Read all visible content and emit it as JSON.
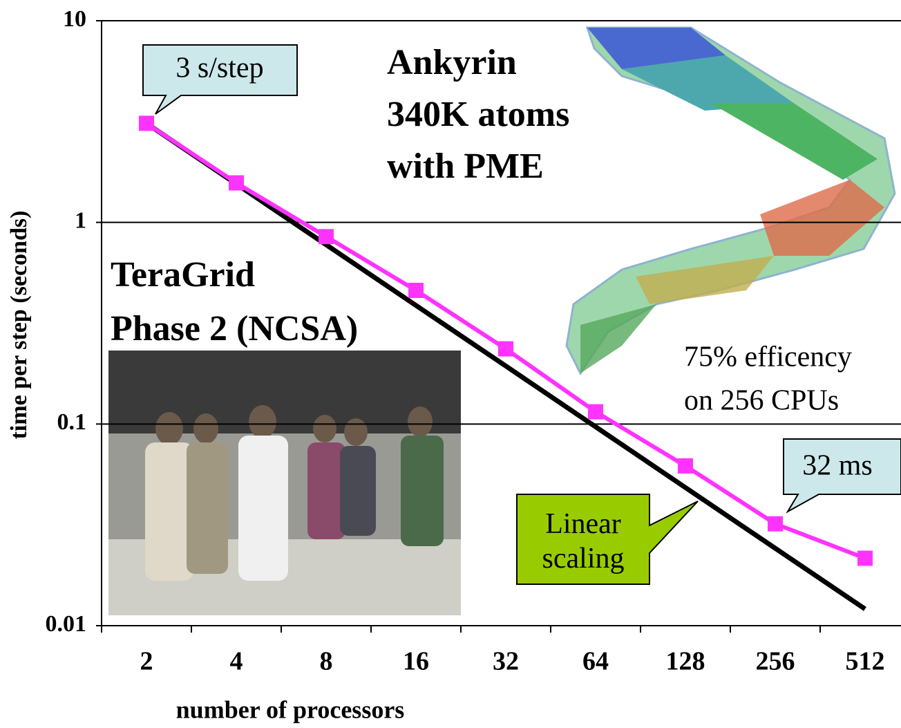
{
  "chart_data": {
    "type": "line",
    "y_label": "time per step (seconds)",
    "x_label": "number of processors",
    "categories": [
      "2",
      "4",
      "8",
      "16",
      "32",
      "64",
      "128",
      "256",
      "512"
    ],
    "series": [
      {
        "name": "Linear scaling",
        "color": "#000000",
        "values": [
          3.1,
          1.55,
          0.775,
          0.3875,
          0.194,
          0.0969,
          0.0484,
          0.0242,
          0.0121
        ]
      },
      {
        "color": "#ff33ff",
        "marker": "square",
        "values": [
          3.1,
          1.57,
          0.85,
          0.46,
          0.236,
          0.115,
          0.062,
          0.032,
          0.0216
        ]
      }
    ],
    "ylim": [
      0.01,
      10
    ],
    "yticks": [
      0.01,
      0.1,
      1,
      10
    ],
    "log_y": true,
    "grid": true,
    "title_lines": [
      "Ankyrin",
      "340K atoms",
      "with PME"
    ],
    "subtitle_lines": [
      "TeraGrid",
      "Phase 2 (NCSA)"
    ],
    "annotations": {
      "start": "3 s/step",
      "end": "32 ms",
      "efficiency": [
        "75% efficency",
        "on 256 CPUs"
      ]
    }
  }
}
